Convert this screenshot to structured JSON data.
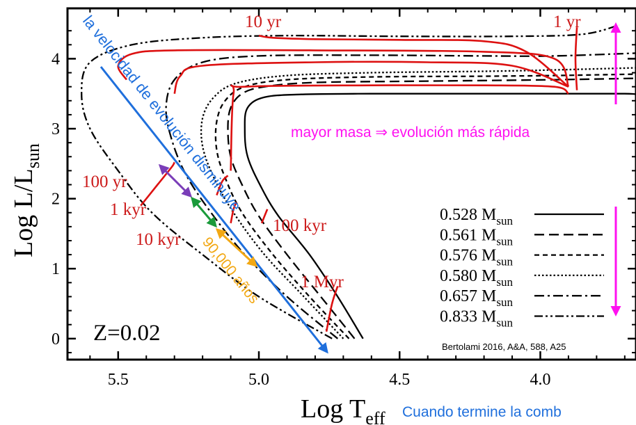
{
  "chart_data": {
    "type": "line",
    "xlabel_main": "Log T",
    "xlabel_sub": "eff",
    "ylabel_main": "Log L/L",
    "ylabel_sub": "sun",
    "x_reversed": true,
    "xlim": [
      5.68,
      3.66
    ],
    "ylim": [
      -0.3,
      4.72
    ],
    "x_ticks": [
      5.5,
      5.0,
      4.5,
      4.0
    ],
    "x_tick_labels": [
      "5.5",
      "5.0",
      "4.5",
      "4.0"
    ],
    "y_ticks": [
      0,
      1,
      2,
      3,
      4
    ],
    "y_tick_labels": [
      "0",
      "1",
      "2",
      "3",
      "4"
    ],
    "grid": false,
    "legend_position": "bottom-right",
    "series": [
      {
        "name": "0.528",
        "unit": "M",
        "unit_sub": "sun",
        "dash": "solid",
        "x": [
          4.63,
          4.72,
          4.82,
          4.93,
          4.99,
          5.04,
          5.05,
          5.04,
          4.98,
          4.85,
          4.6,
          4.2,
          3.95,
          3.7,
          3.66
        ],
        "y": [
          0.0,
          0.6,
          1.2,
          1.75,
          2.15,
          2.6,
          3.0,
          3.3,
          3.45,
          3.49,
          3.5,
          3.5,
          3.5,
          3.5,
          3.49
        ]
      },
      {
        "name": "0.561",
        "unit": "M",
        "unit_sub": "sun",
        "dash": "dash",
        "x": [
          4.66,
          4.78,
          4.9,
          5.0,
          5.06,
          5.1,
          5.11,
          5.1,
          5.06,
          4.98,
          4.8,
          4.4,
          3.95,
          3.66
        ],
        "y": [
          0.0,
          0.6,
          1.2,
          1.75,
          2.2,
          2.6,
          3.0,
          3.3,
          3.5,
          3.6,
          3.66,
          3.68,
          3.7,
          3.72
        ]
      },
      {
        "name": "0.576",
        "unit": "M",
        "unit_sub": "sun",
        "dash": "shortdash",
        "x": [
          4.68,
          4.82,
          4.95,
          5.06,
          5.12,
          5.15,
          5.15,
          5.12,
          5.05,
          4.9,
          4.6,
          4.2,
          3.95,
          3.66
        ],
        "y": [
          0.0,
          0.6,
          1.2,
          1.8,
          2.3,
          2.7,
          3.1,
          3.4,
          3.6,
          3.7,
          3.74,
          3.75,
          3.76,
          3.78
        ]
      },
      {
        "name": "0.580",
        "unit": "M",
        "unit_sub": "sun",
        "dash": "dot",
        "x": [
          4.7,
          4.84,
          4.98,
          5.09,
          5.16,
          5.2,
          5.2,
          5.16,
          5.08,
          4.9,
          4.6,
          4.2,
          3.95,
          3.66
        ],
        "y": [
          0.0,
          0.6,
          1.2,
          1.8,
          2.3,
          2.75,
          3.15,
          3.45,
          3.65,
          3.76,
          3.8,
          3.82,
          3.84,
          3.87
        ]
      },
      {
        "name": "0.657",
        "unit": "M",
        "unit_sub": "sun",
        "dash": "dashdot",
        "x": [
          4.72,
          4.9,
          5.05,
          5.17,
          5.26,
          5.31,
          5.33,
          5.3,
          5.2,
          5.0,
          4.6,
          4.2,
          3.95,
          3.66
        ],
        "y": [
          0.0,
          0.6,
          1.2,
          1.8,
          2.35,
          2.85,
          3.3,
          3.7,
          3.95,
          4.04,
          4.05,
          4.04,
          4.04,
          4.08
        ]
      },
      {
        "name": "0.833",
        "unit": "M",
        "unit_sub": "sun",
        "dash": "dashdotdot",
        "x": [
          4.74,
          5.0,
          5.2,
          5.38,
          5.5,
          5.6,
          5.63,
          5.6,
          5.45,
          5.2,
          4.9,
          4.5,
          4.1,
          3.85,
          3.72
        ],
        "y": [
          0.0,
          0.6,
          1.2,
          1.8,
          2.4,
          3.0,
          3.5,
          3.95,
          4.2,
          4.3,
          4.33,
          4.32,
          4.32,
          4.35,
          4.48
        ]
      }
    ],
    "red_segments": [
      {
        "x": [
          5.42,
          5.36,
          5.31,
          5.3
        ],
        "y": [
          1.9,
          2.2,
          2.45,
          2.52
        ]
      },
      {
        "x": [
          5.47,
          5.5,
          5.45,
          5.3,
          4.8,
          4.2,
          3.95,
          3.9
        ],
        "y": [
          3.7,
          3.9,
          4.07,
          4.12,
          4.12,
          4.1,
          4.0,
          3.6
        ]
      },
      {
        "x": [
          5.1,
          5.09,
          5.05,
          4.6,
          4.2,
          3.95,
          3.9
        ],
        "y": [
          2.4,
          3.5,
          3.6,
          3.62,
          3.62,
          3.6,
          3.5
        ]
      },
      {
        "x": [
          5.3,
          5.28,
          5.2,
          4.8,
          4.4,
          4.1,
          3.9
        ],
        "y": [
          3.5,
          3.75,
          3.9,
          3.95,
          3.95,
          3.9,
          3.6
        ]
      },
      {
        "x": [
          5.0,
          4.95,
          4.8,
          4.5,
          4.2,
          4.05,
          3.9
        ],
        "y": [
          4.33,
          4.3,
          4.28,
          4.27,
          4.25,
          4.1,
          3.6
        ]
      },
      {
        "x": [
          3.87,
          3.875,
          3.87
        ],
        "y": [
          4.45,
          4.0,
          3.55
        ]
      },
      {
        "x": [
          5.15,
          5.13,
          5.11
        ],
        "y": [
          2.05,
          2.25,
          2.33
        ]
      },
      {
        "x": [
          5.1,
          5.09,
          5.08
        ],
        "y": [
          1.65,
          1.85,
          1.95
        ]
      },
      {
        "x": [
          4.99,
          4.98,
          4.97
        ],
        "y": [
          1.65,
          1.75,
          1.85
        ]
      },
      {
        "x": [
          4.76,
          4.74,
          4.72
        ],
        "y": [
          0.1,
          0.5,
          0.75
        ]
      }
    ],
    "annotations": {
      "time_labels": [
        "10 yr",
        "1 yr",
        "100 yr",
        "1 kyr",
        "10 kyr",
        "100 kyr",
        "1 Myr"
      ],
      "z_label": "Z=0.02",
      "mass_note": "mayor masa ⇒ evolución más rápida",
      "diagonal_note": "la velocidad de evolución disminuye",
      "interval_note": "90,000 años",
      "citation": "Bertolami 2016, A&A, 588, A25",
      "footer_note": "Cuando termine la comb"
    },
    "colors": {
      "track": "#000000",
      "red_segment": "#dd1111",
      "diagonal_arrow": "#1f6fdc",
      "mass_arrow": "#ff10f0",
      "purple_arrow": "#7a3db8",
      "green_arrow": "#1a9a3a",
      "orange_arrow": "#f2a814",
      "time_label": "#cc1a1a",
      "footer_text": "#1f6fdc"
    }
  }
}
